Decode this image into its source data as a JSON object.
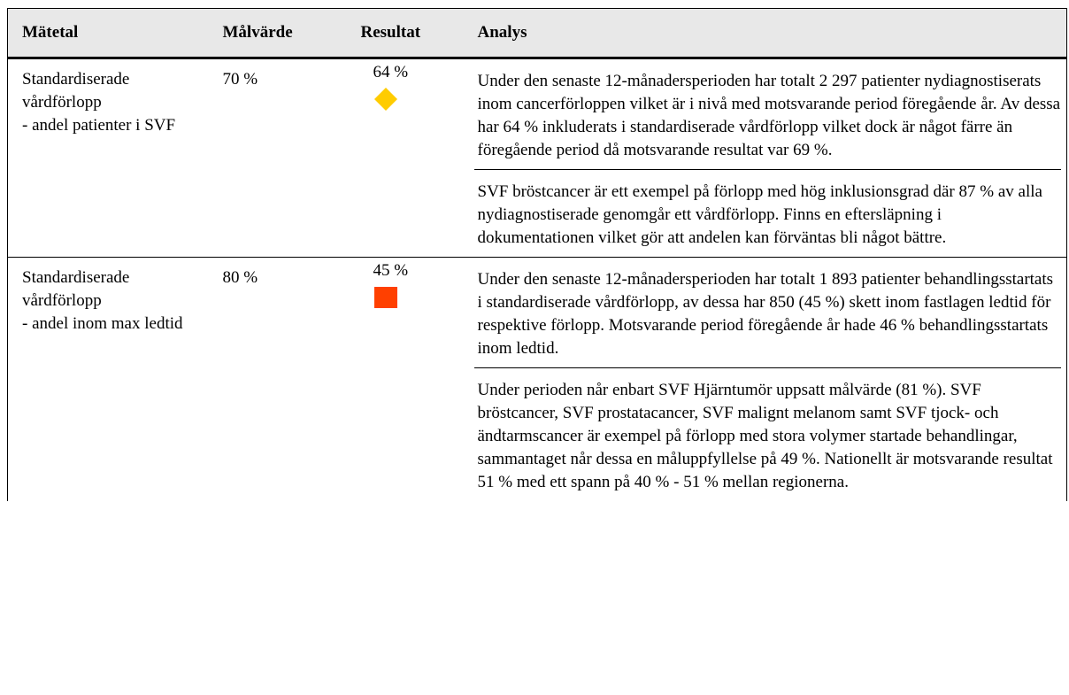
{
  "table": {
    "header": [
      "Mätetal",
      "Målvärde",
      "Resultat",
      "Analys"
    ],
    "rows": [
      {
        "metric": [
          "Standardiserade vårdförlopp",
          "- andel patienter i SVF"
        ],
        "target": "70 %",
        "result": "64 %",
        "analysis": [
          "Under den senaste 12-månadersperioden har totalt 2 297 patienter nydiagnostiserats inom cancerförloppen vilket är i nivå med motsvarande period föregående år. Av dessa har 64 % inkluderats i standardiserade vårdförlopp vilket dock är något färre än föregående period då motsvarande resultat var 69 %.",
          "SVF bröstcancer är ett exempel på förlopp med hög inklusionsgrad där 87 % av alla nydiagnostiserade genomgår ett vårdförlopp. Finns en eftersläpning i dokumentationen vilket gör att andelen kan förväntas bli något bättre."
        ]
      },
      {
        "metric": [
          "Standardiserade vårdförlopp",
          "- andel inom max ledtid"
        ],
        "target": "80 %",
        "result": "45 %",
        "analysis": [
          "Under den senaste 12-månadersperioden har totalt 1 893 patienter behandlingsstartats i standardiserade vårdförlopp, av dessa har 850 (45 %) skett inom fastlagen ledtid för respektive förlopp. Motsvarande period föregående år hade 46 % behandlingsstartats inom ledtid.",
          "Under perioden når enbart SVF Hjärntumör uppsatt målvärde (81 %). SVF bröstcancer, SVF prostatacancer, SVF malignt melanom samt SVF tjock- och ändtarmscancer är exempel på förlopp med stora volymer startade behandlingar, sammantaget når dessa en måluppfyllelse på 49 %. Nationellt är motsvarande resultat 51 % med ett spann på 40 % - 51 % mellan regionerna."
        ]
      }
    ]
  }
}
